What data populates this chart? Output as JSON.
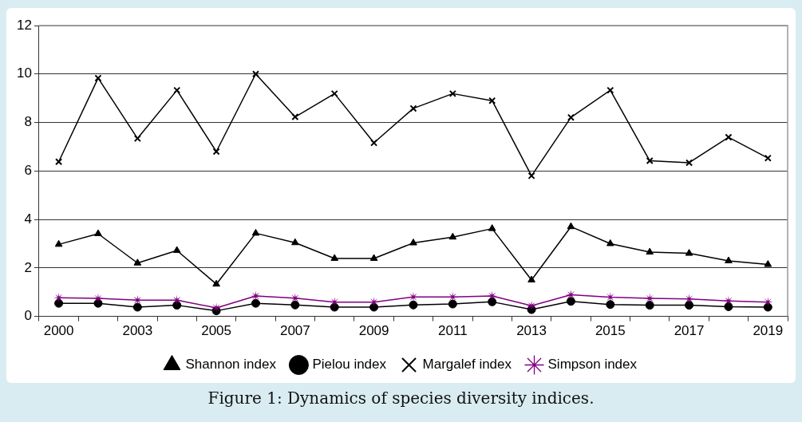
{
  "chart_data": {
    "type": "line",
    "title": "Figure 1: Dynamics of species diversity indices.",
    "categories": [
      "2000",
      null,
      "2003",
      null,
      "2005",
      null,
      "2007",
      null,
      "2009",
      null,
      "2011",
      null,
      "2013",
      null,
      "2015",
      null,
      "2017",
      null,
      "2019"
    ],
    "series": [
      {
        "name": "Shannon index",
        "color": "#000000",
        "marker": "triangle",
        "values": [
          2.97,
          3.41,
          2.2,
          2.72,
          1.33,
          3.43,
          3.04,
          2.39,
          2.39,
          3.03,
          3.27,
          3.62,
          1.5,
          3.7,
          3.0,
          2.65,
          2.6,
          2.29,
          2.14
        ]
      },
      {
        "name": "Pielou index",
        "color": "#000000",
        "marker": "circle",
        "values": [
          0.54,
          0.54,
          0.38,
          0.46,
          0.23,
          0.54,
          0.47,
          0.38,
          0.38,
          0.47,
          0.51,
          0.6,
          0.28,
          0.62,
          0.49,
          0.46,
          0.46,
          0.4,
          0.38
        ]
      },
      {
        "name": "Margalef index",
        "color": "#000000",
        "marker": "cross",
        "values": [
          6.38,
          9.83,
          7.34,
          9.33,
          6.8,
          10.0,
          8.23,
          9.19,
          7.16,
          8.58,
          9.19,
          8.9,
          5.8,
          8.21,
          9.33,
          6.42,
          6.34,
          7.39,
          6.53
        ]
      },
      {
        "name": "Simpson index",
        "color": "#800080",
        "marker": "star",
        "values": [
          0.77,
          0.74,
          0.67,
          0.67,
          0.35,
          0.84,
          0.75,
          0.59,
          0.59,
          0.8,
          0.8,
          0.84,
          0.44,
          0.89,
          0.79,
          0.74,
          0.72,
          0.64,
          0.59
        ]
      }
    ],
    "ylim": [
      0,
      12
    ],
    "yticks": [
      0,
      2,
      4,
      6,
      8,
      10,
      12
    ],
    "grid": "y",
    "legend": "bottom",
    "line_style": "solid"
  }
}
